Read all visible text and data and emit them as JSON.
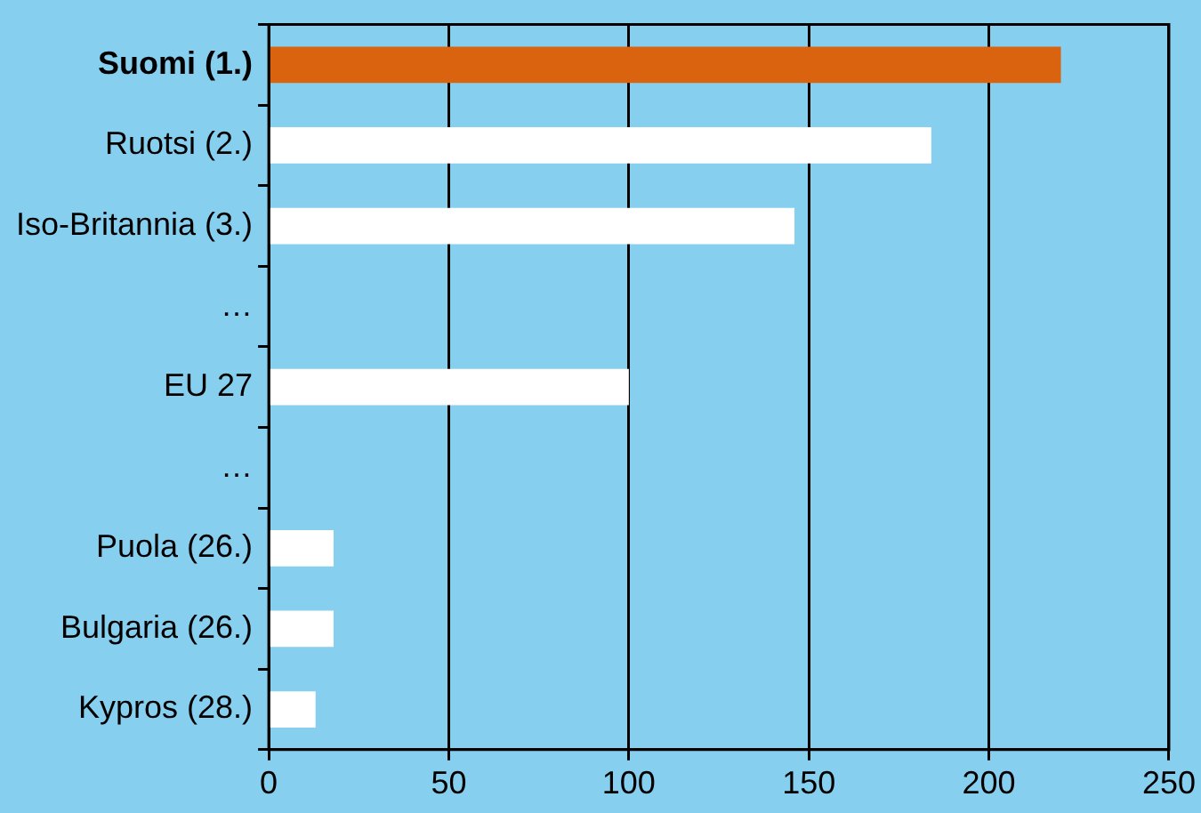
{
  "chart_data": {
    "type": "bar",
    "orientation": "horizontal",
    "categories": [
      "Suomi (1.)",
      "Ruotsi (2.)",
      "Iso-Britannia (3.)",
      "…",
      "EU 27",
      "…",
      "Puola (26.)",
      "Bulgaria (26.)",
      "Kypros (28.)"
    ],
    "values": [
      220,
      184,
      146,
      null,
      100,
      null,
      18,
      18,
      13
    ],
    "colors": [
      "#d9630f",
      "#ffffff",
      "#ffffff",
      "#ffffff",
      "#ffffff",
      "#ffffff",
      "#ffffff",
      "#ffffff",
      "#ffffff"
    ],
    "xlim": [
      0,
      250
    ],
    "xticks": [
      0,
      50,
      100,
      150,
      200,
      250
    ],
    "grid": "x",
    "legend": false
  }
}
